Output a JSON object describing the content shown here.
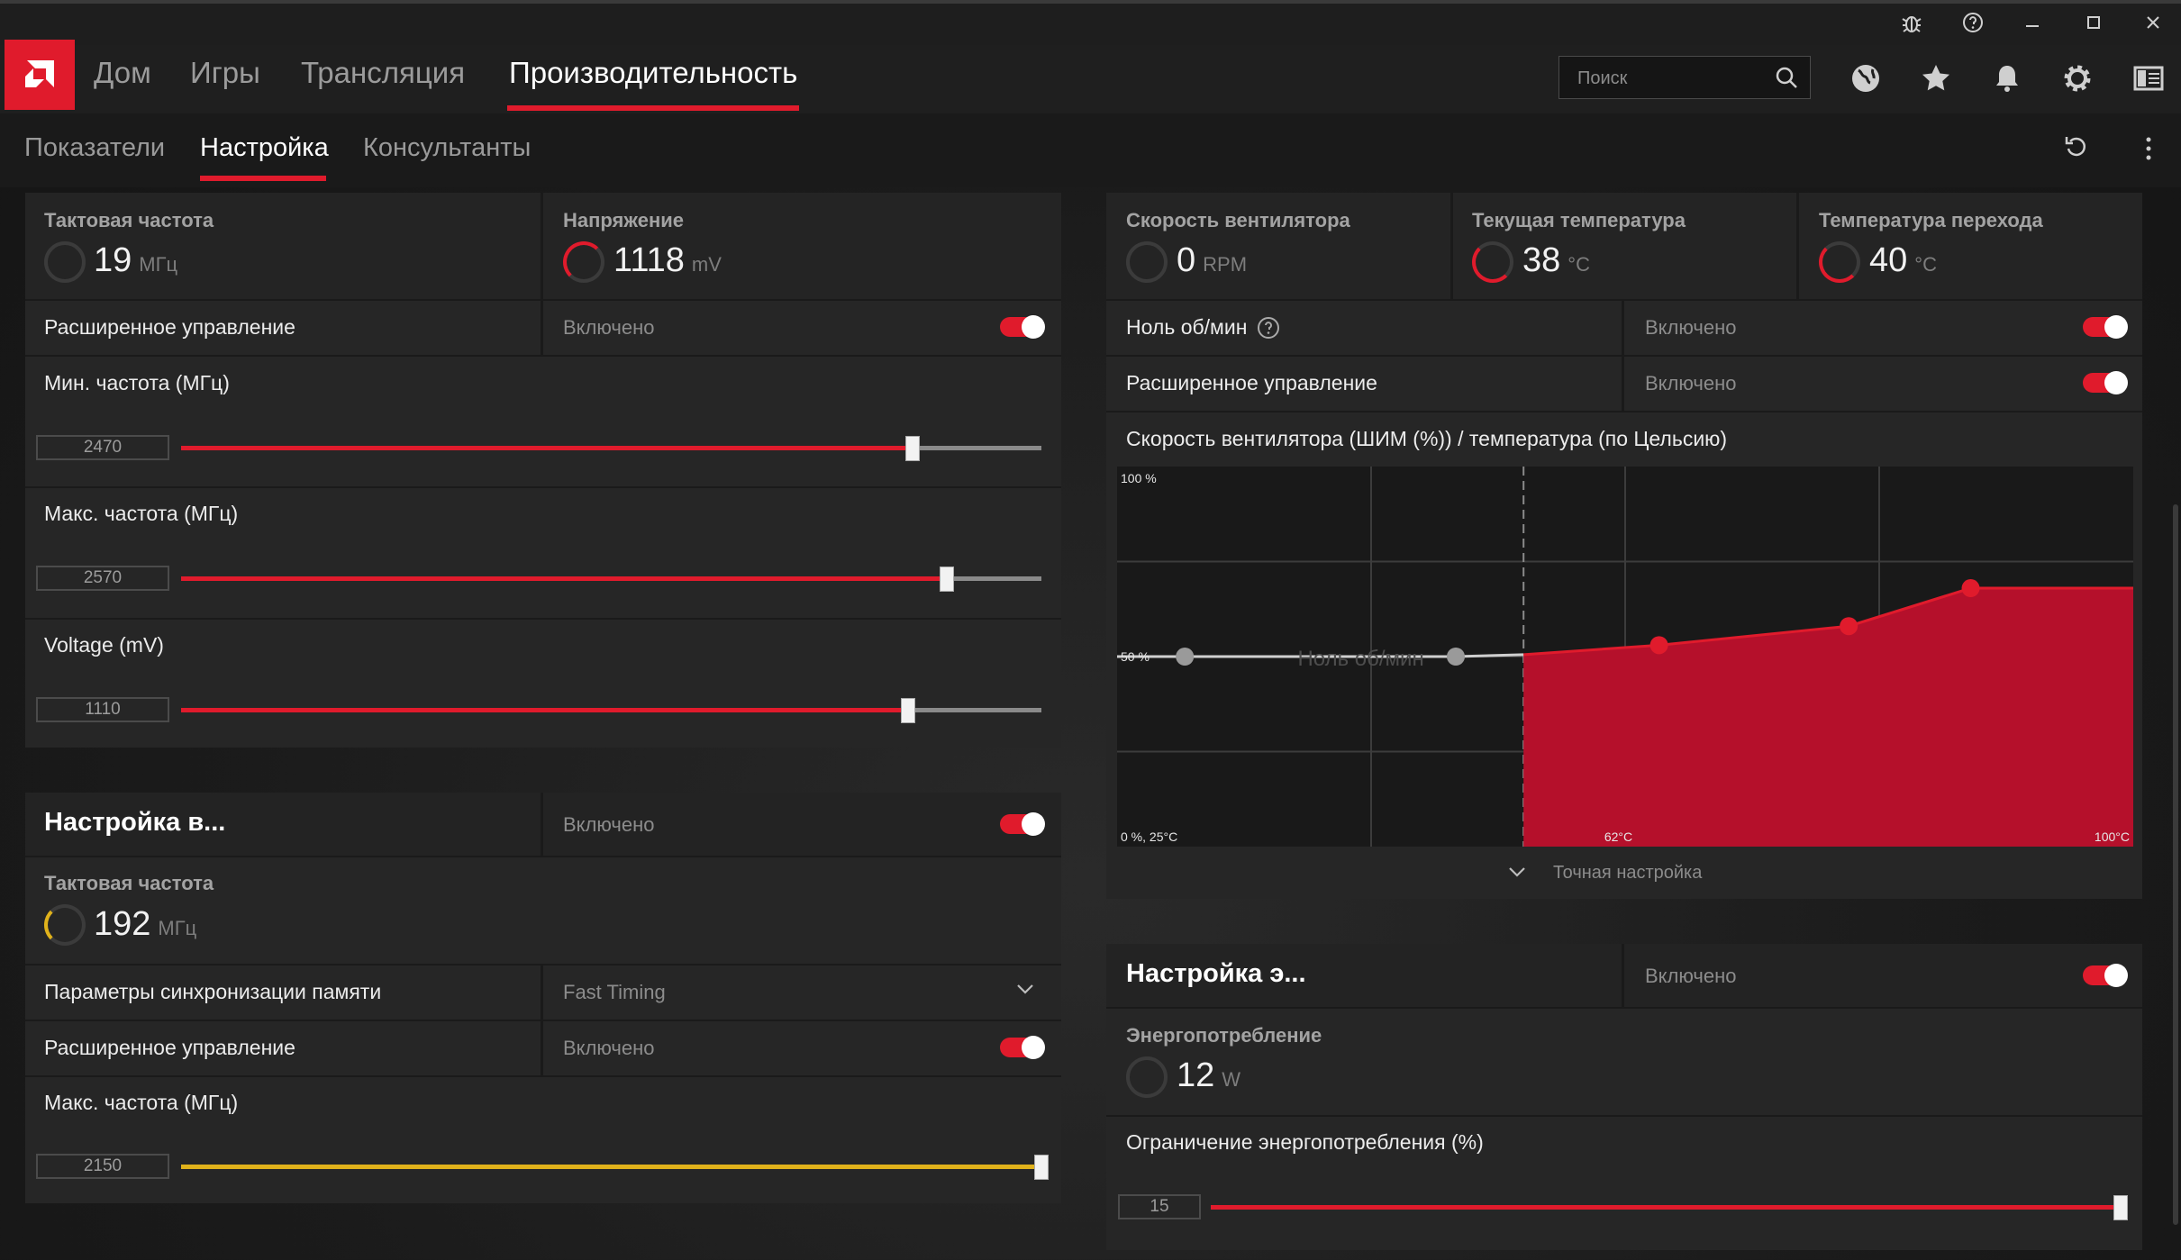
{
  "nav": {
    "home": "Дом",
    "games": "Игры",
    "streaming": "Трансляция",
    "performance": "Производительность"
  },
  "search": {
    "placeholder": "Поиск"
  },
  "subnav": {
    "metrics": "Показатели",
    "tuning": "Настройка",
    "advisors": "Консультанты"
  },
  "gpu": {
    "clock": {
      "label": "Тактовая частота",
      "value": "19",
      "unit": "МГц"
    },
    "voltage": {
      "label": "Напряжение",
      "value": "1118",
      "unit": "mV"
    },
    "advanced_control": {
      "label": "Расширенное управление",
      "state": "Включено"
    },
    "min_freq": {
      "label": "Мин. частота (МГц)",
      "value": "2470",
      "level": 0.85
    },
    "max_freq": {
      "label": "Макс. частота (МГц)",
      "value": "2570",
      "level": 0.89
    },
    "voltage_slider": {
      "label": "Voltage (mV)",
      "value": "1110",
      "level": 0.845
    }
  },
  "vram": {
    "title": "Настройка в...",
    "state": "Включено",
    "clock": {
      "label": "Тактовая частота",
      "value": "192",
      "unit": "МГц"
    },
    "timing": {
      "label": "Параметры синхронизации памяти",
      "value": "Fast Timing"
    },
    "advanced_control": {
      "label": "Расширенное управление",
      "state": "Включено"
    },
    "max_freq": {
      "label": "Макс. частота (МГц)",
      "value": "2150",
      "level": 1.0
    }
  },
  "fan": {
    "speed": {
      "label": "Скорость вентилятора",
      "value": "0",
      "unit": "RPM"
    },
    "temp": {
      "label": "Текущая температура",
      "value": "38",
      "unit": "°C"
    },
    "junction": {
      "label": "Температура перехода",
      "value": "40",
      "unit": "°C"
    },
    "zero_rpm": {
      "label": "Ноль об/мин",
      "state": "Включено"
    },
    "advanced_control": {
      "label": "Расширенное управление",
      "state": "Включено"
    },
    "curve_title": "Скорость вентилятора (ШИМ (%)) / температура (по Цельсию)",
    "fine_tune": "Точная настройка"
  },
  "chart_data": {
    "type": "area",
    "title": "Скорость вентилятора (ШИМ (%)) / температура (по Цельсию)",
    "y_labels": {
      "top": "100 %",
      "mid": "50 %",
      "bottom": "0 %, 25°C"
    },
    "x_labels": {
      "mid": "62°C",
      "right": "100°C"
    },
    "zero_rpm_label": "Ноль об/мин",
    "xlim": [
      25,
      100
    ],
    "ylim": [
      0,
      100
    ],
    "zero_rpm_threshold": 55,
    "points": [
      {
        "x": 30,
        "y": 50
      },
      {
        "x": 50,
        "y": 50
      },
      {
        "x": 65,
        "y": 53
      },
      {
        "x": 79,
        "y": 58
      },
      {
        "x": 88,
        "y": 68
      }
    ],
    "series_color": "#b5102b"
  },
  "power": {
    "title": "Настройка э...",
    "state": "Включено",
    "draw": {
      "label": "Энергопотребление",
      "value": "12",
      "unit": "W"
    },
    "limit": {
      "label": "Ограничение энергопотребления (%)",
      "value": "15",
      "level": 1.0
    }
  },
  "colors": {
    "accent": "#e01b2c",
    "warning": "#e0b21b",
    "chart_fill": "#b5102b"
  }
}
